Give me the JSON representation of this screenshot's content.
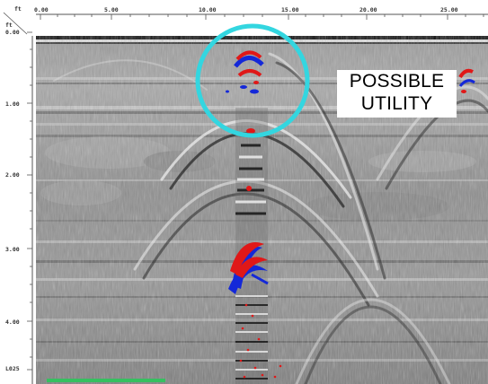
{
  "profile": {
    "x_unit_label": "ft",
    "depth_unit_label": "ft",
    "x_ticks": [
      "0.00",
      "5.00",
      "10.00",
      "15.00",
      "20.00",
      "25.00"
    ],
    "depth_ticks": [
      "0.00",
      "1.00",
      "2.00",
      "3.00",
      "4.00"
    ],
    "line_label": "L025"
  },
  "annotation": {
    "line1": "POSSIBLE",
    "line2": "UTILITY"
  },
  "highlight": {
    "shape": "circle",
    "color": "#33d6e0"
  },
  "colors": {
    "positive_reflection": "#e01818",
    "negative_reflection": "#1428d8",
    "background_gray": "#8f8f8f"
  }
}
